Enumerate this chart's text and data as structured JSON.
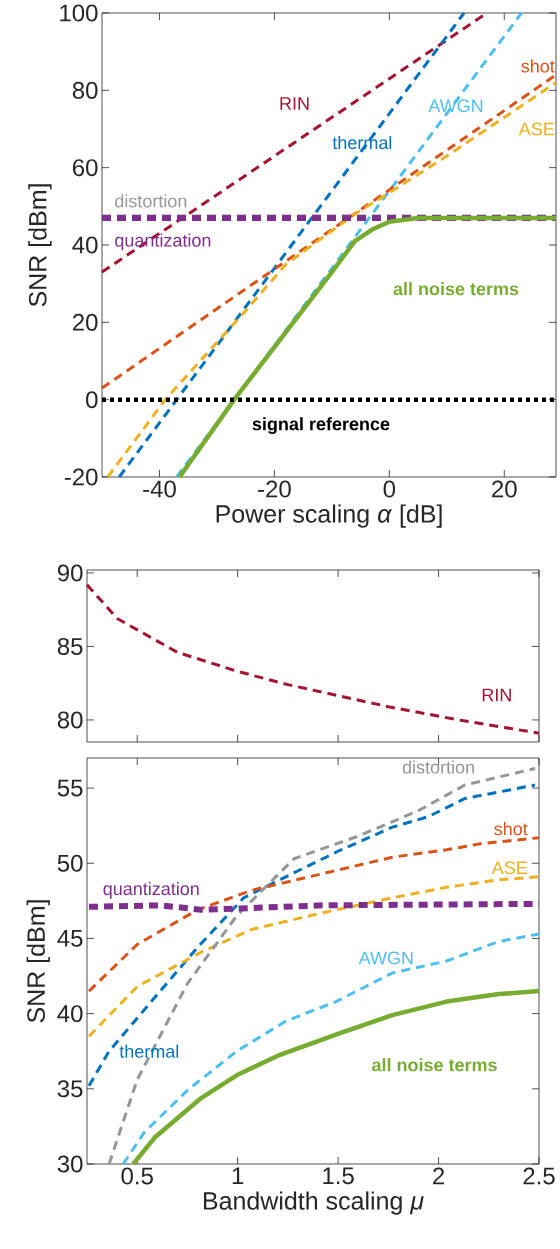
{
  "chart_data": [
    {
      "type": "line",
      "xlabel": "Power scaling *α* [dB]",
      "ylabel": "SNR [dBm]",
      "xlim": [
        -50,
        29
      ],
      "ylim": [
        -20,
        100
      ],
      "xticks": [
        -40,
        -20,
        0,
        20
      ],
      "yticks": [
        -20,
        0,
        20,
        40,
        60,
        80,
        100
      ],
      "series": [
        {
          "name": "RIN",
          "color": "#a2142f",
          "line_style": "dashed",
          "x": [
            -50,
            17
          ],
          "values": [
            33,
            100
          ]
        },
        {
          "name": "thermal",
          "color": "#0072bd",
          "line_style": "dashed",
          "x": [
            -47,
            13
          ],
          "values": [
            -20,
            100
          ]
        },
        {
          "name": "AWGN",
          "color": "#4dbeee",
          "line_style": "dashed",
          "x": [
            -37,
            23
          ],
          "values": [
            -20,
            100
          ]
        },
        {
          "name": "shot",
          "color": "#d95319",
          "line_style": "dashed",
          "x": [
            -50,
            29
          ],
          "values": [
            3,
            84
          ]
        },
        {
          "name": "ASE",
          "color": "#edb120",
          "line_style": "dashed",
          "x": [
            -49,
            -39,
            -25,
            -18,
            -6,
            0,
            10,
            20,
            29
          ],
          "values": [
            -20,
            0,
            23,
            35,
            48,
            53.5,
            63,
            73,
            82
          ]
        },
        {
          "name": "distortion",
          "color": "#969696",
          "line_style": "dashed",
          "x": [
            -50,
            29
          ],
          "values": [
            47.5,
            47.5
          ]
        },
        {
          "name": "quantization",
          "color": "#7e2f8e",
          "line_style": "dashed",
          "x": [
            -50,
            29
          ],
          "values": [
            47,
            47
          ]
        },
        {
          "name": "all noise terms",
          "color": "#77ac30",
          "line_style": "solid",
          "x": [
            -36.5,
            -27,
            -10,
            -6,
            -3,
            0,
            5,
            29
          ],
          "values": [
            -20,
            0,
            33,
            41,
            44,
            46,
            47,
            47
          ]
        }
      ],
      "ref_lines": [
        {
          "axis": "y",
          "value": 0,
          "label": "signal reference",
          "color": "#000000",
          "line_style": "dotted"
        }
      ]
    },
    {
      "type": "line",
      "xlim": [
        0.25,
        2.5
      ],
      "ylim": [
        78.5,
        90.2
      ],
      "xticks": [
        0.5,
        1,
        1.5,
        2,
        2.5
      ],
      "yticks": [
        80,
        85,
        90
      ],
      "tick_labels": "y",
      "series": [
        {
          "name": "RIN",
          "color": "#a2142f",
          "line_style": "dashed",
          "x": [
            0.25,
            0.4,
            0.7,
            1.0,
            1.25,
            1.75,
            2.1,
            2.5
          ],
          "values": [
            89.2,
            86.9,
            84.6,
            83.3,
            82.4,
            80.9,
            80.0,
            79.1
          ]
        }
      ]
    },
    {
      "type": "line",
      "xlabel": "Bandwidth scaling *μ*",
      "ylabel": "SNR [dBm]",
      "xlim": [
        0.25,
        2.5
      ],
      "ylim": [
        30,
        57
      ],
      "xticks": [
        0.5,
        1,
        1.5,
        2,
        2.5
      ],
      "yticks": [
        30,
        35,
        40,
        45,
        50,
        55
      ],
      "series": [
        {
          "name": "thermal",
          "color": "#0072bd",
          "line_style": "dashed",
          "x": [
            0.26,
            0.36,
            0.57,
            0.8,
            1.03,
            1.24,
            1.5,
            1.77,
            1.95,
            2.13,
            2.48
          ],
          "values": [
            35.2,
            37.5,
            40.8,
            44.4,
            47.7,
            49.1,
            50.8,
            52.4,
            53.1,
            54.3,
            55.2
          ]
        },
        {
          "name": "AWGN",
          "color": "#4dbeee",
          "line_style": "dashed",
          "x": [
            0.43,
            0.535,
            0.75,
            0.995,
            1.24,
            1.49,
            1.77,
            2.04,
            2.3,
            2.5
          ],
          "values": [
            30,
            32.1,
            34.9,
            37.5,
            39.5,
            40.8,
            42.7,
            43.5,
            44.8,
            45.3
          ]
        },
        {
          "name": "shot",
          "color": "#d95319",
          "line_style": "dashed",
          "x": [
            0.26,
            0.5,
            0.8,
            1.07,
            1.42,
            1.77,
            2.04,
            2.21,
            2.5
          ],
          "values": [
            41.5,
            44.6,
            46.9,
            48.2,
            49.3,
            50.4,
            50.9,
            51.3,
            51.7
          ]
        },
        {
          "name": "ASE",
          "color": "#edb120",
          "line_style": "dashed",
          "x": [
            0.26,
            0.5,
            0.82,
            1.07,
            1.42,
            1.77,
            2.04,
            2.3,
            2.5
          ],
          "values": [
            38.5,
            41.8,
            44.1,
            45.6,
            46.7,
            47.7,
            48.4,
            48.9,
            49.1
          ]
        },
        {
          "name": "distortion",
          "color": "#969696",
          "line_style": "dashed",
          "x": [
            0.36,
            0.5,
            0.75,
            0.995,
            1.28,
            1.6,
            1.9,
            2.13,
            2.48
          ],
          "values": [
            30,
            35.6,
            42,
            46.5,
            50.3,
            51.8,
            53.5,
            55.2,
            56.3
          ]
        },
        {
          "name": "quantization",
          "color": "#7e2f8e",
          "line_style": "dashed",
          "x": [
            0.26,
            0.62,
            0.82,
            1.42,
            2.5
          ],
          "values": [
            47.1,
            47.2,
            46.9,
            47.2,
            47.3
          ]
        },
        {
          "name": "all noise terms",
          "color": "#77ac30",
          "line_style": "solid",
          "x": [
            0.48,
            0.59,
            0.82,
            0.995,
            1.2,
            1.51,
            1.77,
            2.04,
            2.3,
            2.5
          ],
          "values": [
            30,
            31.8,
            34.4,
            35.9,
            37.2,
            38.7,
            39.9,
            40.8,
            41.3,
            41.5
          ]
        }
      ]
    }
  ]
}
